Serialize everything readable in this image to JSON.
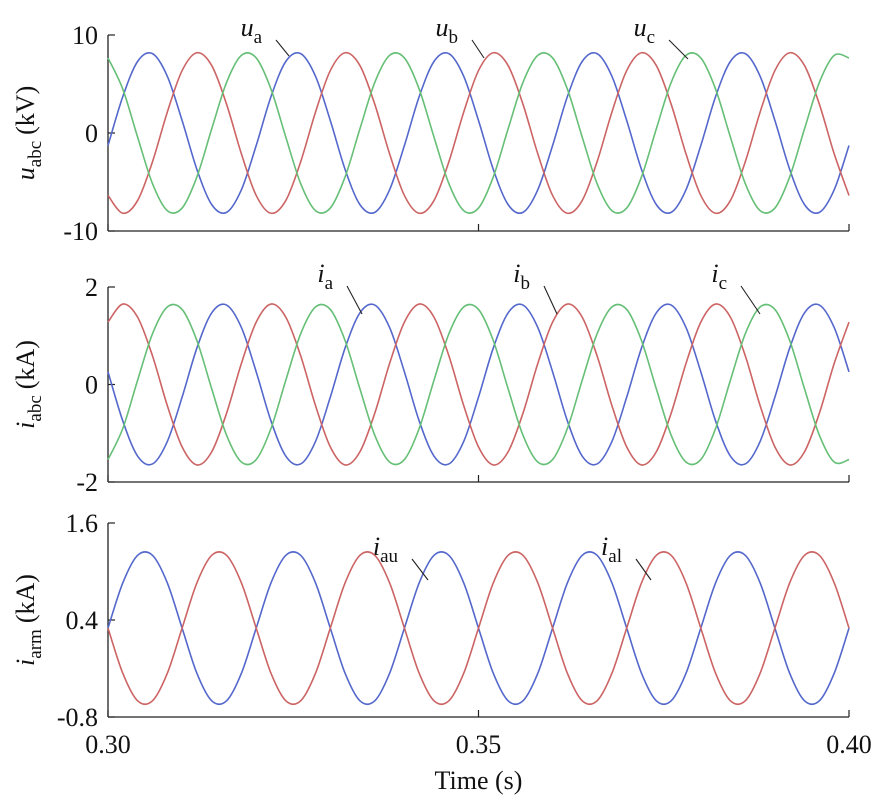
{
  "chart_data": [
    {
      "type": "line",
      "ylabel": {
        "main": "u",
        "sub": "abc",
        "unit": "(kV)"
      },
      "x": [
        0.3,
        0.302,
        0.304,
        0.306,
        0.308,
        0.31,
        0.312,
        0.314,
        0.316,
        0.318,
        0.32,
        0.322,
        0.324,
        0.326,
        0.328,
        0.33,
        0.332,
        0.334,
        0.336,
        0.338,
        0.34,
        0.342,
        0.344,
        0.346,
        0.348,
        0.35,
        0.352,
        0.354,
        0.356,
        0.358,
        0.36,
        0.362,
        0.364,
        0.366,
        0.368,
        0.37,
        0.372,
        0.374,
        0.376,
        0.378,
        0.38,
        0.382,
        0.384,
        0.386,
        0.388,
        0.39,
        0.392,
        0.394,
        0.396,
        0.398,
        0.4
      ],
      "xlim": [
        0.3,
        0.4
      ],
      "ylim": [
        -10,
        10
      ],
      "yticks": [
        -10,
        0,
        10
      ],
      "series": [
        {
          "name": "u",
          "subscript": "a",
          "color": "#5468cc",
          "values": [
            -1.28,
            3.72,
            7.31,
            8.1,
            5.8,
            1.28,
            -3.72,
            -7.31,
            -8.1,
            -5.8,
            -1.28,
            3.72,
            7.31,
            8.1,
            5.8,
            1.28,
            -3.72,
            -7.31,
            -8.1,
            -5.8,
            -1.28,
            3.72,
            7.31,
            8.1,
            5.8,
            1.28,
            -3.72,
            -7.31,
            -8.1,
            -5.8,
            -1.28,
            3.72,
            7.31,
            8.1,
            5.8,
            1.28,
            -3.72,
            -7.31,
            -8.1,
            -5.8,
            -1.28,
            3.72,
            7.31,
            8.1,
            5.8,
            1.28,
            -3.72,
            -7.31,
            -8.1,
            -5.8,
            -1.28
          ]
        },
        {
          "name": "u",
          "subscript": "b",
          "color": "#cc6464",
          "values": [
            -6.37,
            -8.19,
            -6.88,
            -2.94,
            2.12,
            6.37,
            8.19,
            6.88,
            2.94,
            -2.12,
            -6.37,
            -8.19,
            -6.88,
            -2.94,
            2.12,
            6.37,
            8.19,
            6.88,
            2.94,
            -2.12,
            -6.37,
            -8.19,
            -6.88,
            -2.94,
            2.12,
            6.37,
            8.19,
            6.88,
            2.94,
            -2.12,
            -6.37,
            -8.19,
            -6.88,
            -2.94,
            2.12,
            6.37,
            8.19,
            6.88,
            2.94,
            -2.12,
            -6.37,
            -8.19,
            -6.88,
            -2.94,
            2.12,
            6.37,
            8.19,
            6.88,
            2.94,
            -2.12,
            -6.37
          ]
        },
        {
          "name": "u",
          "subscript": "c",
          "color": "#66bf76",
          "values": [
            7.66,
            4.47,
            -0.43,
            -5.16,
            -7.92,
            -7.66,
            -4.47,
            0.43,
            5.16,
            7.92,
            7.66,
            4.47,
            -0.43,
            -5.16,
            -7.92,
            -7.66,
            -4.47,
            0.43,
            5.16,
            7.92,
            7.66,
            4.47,
            -0.43,
            -5.16,
            -7.92,
            -7.66,
            -4.47,
            0.43,
            5.16,
            7.92,
            7.66,
            4.47,
            -0.43,
            -5.16,
            -7.92,
            -7.66,
            -4.47,
            0.43,
            5.16,
            7.92,
            7.66,
            4.47,
            -0.43,
            -5.16,
            -7.92,
            -7.66,
            -4.47,
            0.43,
            5.16,
            7.92,
            7.66
          ]
        }
      ]
    },
    {
      "type": "line",
      "ylabel": {
        "main": "i",
        "sub": "abc",
        "unit": "(kA)"
      },
      "x": [
        0.3,
        0.302,
        0.304,
        0.306,
        0.308,
        0.31,
        0.312,
        0.314,
        0.316,
        0.318,
        0.32,
        0.322,
        0.324,
        0.326,
        0.328,
        0.33,
        0.332,
        0.334,
        0.336,
        0.338,
        0.34,
        0.342,
        0.344,
        0.346,
        0.348,
        0.35,
        0.352,
        0.354,
        0.356,
        0.358,
        0.36,
        0.362,
        0.364,
        0.366,
        0.368,
        0.37,
        0.372,
        0.374,
        0.376,
        0.378,
        0.38,
        0.382,
        0.384,
        0.386,
        0.388,
        0.39,
        0.392,
        0.394,
        0.396,
        0.398,
        0.4
      ],
      "xlim": [
        0.3,
        0.4
      ],
      "ylim": [
        -2,
        2
      ],
      "yticks": [
        -2,
        0,
        2
      ],
      "series": [
        {
          "name": "i",
          "subscript": "a",
          "color": "#5468cc",
          "values": [
            0.26,
            -0.75,
            -1.47,
            -1.63,
            -1.17,
            -0.26,
            0.75,
            1.47,
            1.63,
            1.17,
            0.26,
            -0.75,
            -1.47,
            -1.63,
            -1.17,
            -0.26,
            0.75,
            1.47,
            1.63,
            1.17,
            0.26,
            -0.75,
            -1.47,
            -1.63,
            -1.17,
            -0.26,
            0.75,
            1.47,
            1.63,
            1.17,
            0.26,
            -0.75,
            -1.47,
            -1.63,
            -1.17,
            -0.26,
            0.75,
            1.47,
            1.63,
            1.17,
            0.26,
            -0.75,
            -1.47,
            -1.63,
            -1.17,
            -0.26,
            0.75,
            1.47,
            1.63,
            1.17,
            0.26
          ]
        },
        {
          "name": "i",
          "subscript": "b",
          "color": "#cc6464",
          "values": [
            1.28,
            1.65,
            1.38,
            0.59,
            -0.43,
            -1.28,
            -1.65,
            -1.38,
            -0.59,
            0.43,
            1.28,
            1.65,
            1.38,
            0.59,
            -0.43,
            -1.28,
            -1.65,
            -1.38,
            -0.59,
            0.43,
            1.28,
            1.65,
            1.38,
            0.59,
            -0.43,
            -1.28,
            -1.65,
            -1.38,
            -0.59,
            0.43,
            1.28,
            1.65,
            1.38,
            0.59,
            -0.43,
            -1.28,
            -1.65,
            -1.38,
            -0.59,
            0.43,
            1.28,
            1.65,
            1.38,
            0.59,
            -0.43,
            -1.28,
            -1.65,
            -1.38,
            -0.59,
            0.43,
            1.28
          ]
        },
        {
          "name": "i",
          "subscript": "c",
          "color": "#66bf76",
          "values": [
            -1.54,
            -0.9,
            0.09,
            1.04,
            1.59,
            1.54,
            0.9,
            -0.09,
            -1.04,
            -1.59,
            -1.54,
            -0.9,
            0.09,
            1.04,
            1.59,
            1.54,
            0.9,
            -0.09,
            -1.04,
            -1.59,
            -1.54,
            -0.9,
            0.09,
            1.04,
            1.59,
            1.54,
            0.9,
            -0.09,
            -1.04,
            -1.59,
            -1.54,
            -0.9,
            0.09,
            1.04,
            1.59,
            1.54,
            0.9,
            -0.09,
            -1.04,
            -1.59,
            -1.54,
            -0.9,
            0.09,
            1.04,
            1.59,
            1.54,
            0.9,
            -0.09,
            -1.04,
            -1.59,
            -1.54
          ]
        }
      ]
    },
    {
      "type": "line",
      "ylabel": {
        "main": "i",
        "sub": "arm",
        "unit": "(kA)"
      },
      "xlabel": "Time (s)",
      "x": [
        0.3,
        0.302,
        0.304,
        0.306,
        0.308,
        0.31,
        0.312,
        0.314,
        0.316,
        0.318,
        0.32,
        0.322,
        0.324,
        0.326,
        0.328,
        0.33,
        0.332,
        0.334,
        0.336,
        0.338,
        0.34,
        0.342,
        0.344,
        0.346,
        0.348,
        0.35,
        0.352,
        0.354,
        0.356,
        0.358,
        0.36,
        0.362,
        0.364,
        0.366,
        0.368,
        0.37,
        0.372,
        0.374,
        0.376,
        0.378,
        0.38,
        0.382,
        0.384,
        0.386,
        0.388,
        0.39,
        0.392,
        0.394,
        0.396,
        0.398,
        0.4
      ],
      "xlim": [
        0.3,
        0.4
      ],
      "xticks": [
        {
          "value": 0.3,
          "label": "0.30"
        },
        {
          "value": 0.35,
          "label": "0.35"
        },
        {
          "value": 0.4,
          "label": "0.40"
        }
      ],
      "ylim": [
        -0.8,
        1.6
      ],
      "yticks": [
        -0.8,
        0.4,
        1.6
      ],
      "series": [
        {
          "name": "i",
          "subscript": "au",
          "color": "#5468cc",
          "values": [
            0.3,
            0.86,
            1.2,
            1.2,
            0.86,
            0.3,
            -0.26,
            -0.6,
            -0.6,
            -0.26,
            0.3,
            0.86,
            1.2,
            1.2,
            0.86,
            0.3,
            -0.26,
            -0.6,
            -0.6,
            -0.26,
            0.3,
            0.86,
            1.2,
            1.2,
            0.86,
            0.3,
            -0.26,
            -0.6,
            -0.6,
            -0.26,
            0.3,
            0.86,
            1.2,
            1.2,
            0.86,
            0.3,
            -0.26,
            -0.6,
            -0.6,
            -0.26,
            0.3,
            0.86,
            1.2,
            1.2,
            0.86,
            0.3,
            -0.26,
            -0.6,
            -0.6,
            -0.26,
            0.3
          ]
        },
        {
          "name": "i",
          "subscript": "al",
          "color": "#cc6464",
          "values": [
            0.3,
            -0.26,
            -0.6,
            -0.6,
            -0.26,
            0.3,
            0.86,
            1.2,
            1.2,
            0.86,
            0.3,
            -0.26,
            -0.6,
            -0.6,
            -0.26,
            0.3,
            0.86,
            1.2,
            1.2,
            0.86,
            0.3,
            -0.26,
            -0.6,
            -0.6,
            -0.26,
            0.3,
            0.86,
            1.2,
            1.2,
            0.86,
            0.3,
            -0.26,
            -0.6,
            -0.6,
            -0.26,
            0.3,
            0.86,
            1.2,
            1.2,
            0.86,
            0.3,
            -0.26,
            -0.6,
            -0.6,
            -0.26,
            0.3,
            0.86,
            1.2,
            1.2,
            0.86,
            0.3
          ]
        }
      ]
    }
  ]
}
